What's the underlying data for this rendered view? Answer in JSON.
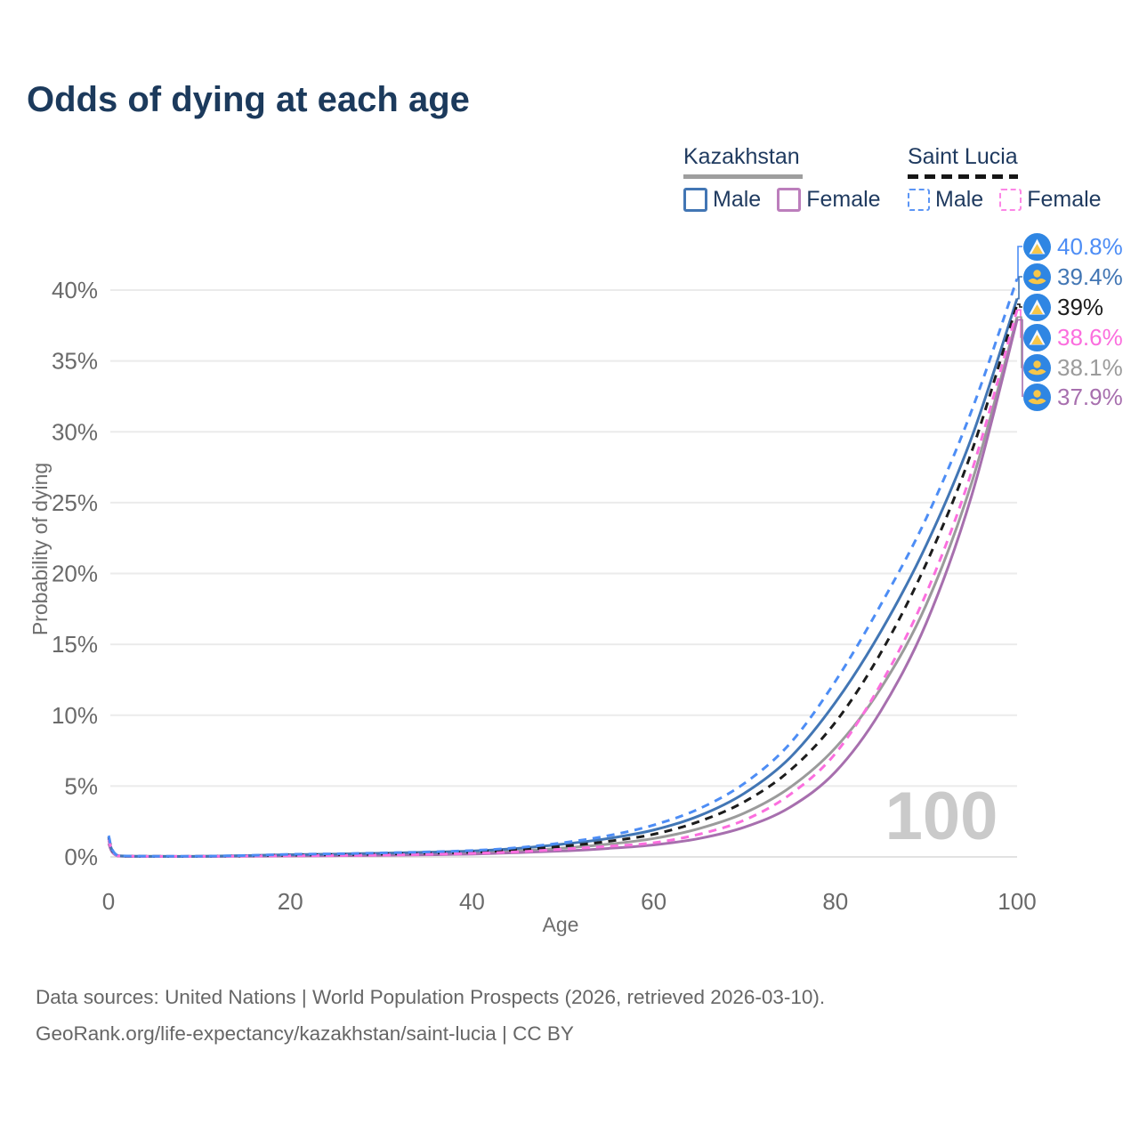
{
  "title": "Odds of dying at each age",
  "legend": {
    "groups": [
      {
        "title": "Kazakhstan",
        "style": "solid",
        "items": [
          {
            "label": "Male",
            "color": "#4276b4"
          },
          {
            "label": "Female",
            "color": "#bc7ebc"
          }
        ]
      },
      {
        "title": "Saint Lucia",
        "style": "dashed",
        "items": [
          {
            "label": "Male",
            "color": "#5b95f5"
          },
          {
            "label": "Female",
            "color": "#fc86e6"
          }
        ]
      }
    ]
  },
  "axes": {
    "x_title": "Age",
    "y_title": "Probability of dying"
  },
  "watermark": "100",
  "footer": {
    "line1": "Data sources: United Nations | World Population Prospects (2026, retrieved 2026-03-10).",
    "line2": "GeoRank.org/life-expectancy/kazakhstan/saint-lucia | CC BY"
  },
  "chart_data": {
    "type": "line",
    "title": "Odds of dying at each age",
    "xlabel": "Age",
    "ylabel": "Probability of dying",
    "xlim": [
      0,
      100
    ],
    "ylim_percent": [
      0,
      40
    ],
    "grid": "horizontal",
    "x_tick_values": [
      0,
      20,
      40,
      60,
      80,
      100
    ],
    "x_tick_labels": [
      "0",
      "20",
      "40",
      "60",
      "80",
      "100"
    ],
    "y_tick_values": [
      0,
      5,
      10,
      15,
      20,
      25,
      30,
      35,
      40
    ],
    "y_tick_labels": [
      "0%",
      "5%",
      "10%",
      "15%",
      "20%",
      "25%",
      "30%",
      "35%",
      "40%"
    ],
    "ages": [
      0,
      1,
      5,
      10,
      15,
      20,
      25,
      30,
      35,
      40,
      45,
      50,
      55,
      60,
      65,
      70,
      75,
      80,
      85,
      90,
      95,
      100
    ],
    "series": [
      {
        "key": "kz_total",
        "name": "Kazakhstan",
        "country": "Kazakhstan",
        "sex": "Both",
        "dash": "solid",
        "color": "#9b9b9b",
        "values_percent": [
          1.15,
          0.08,
          0.04,
          0.04,
          0.07,
          0.1,
          0.13,
          0.17,
          0.22,
          0.29,
          0.42,
          0.62,
          0.9,
          1.3,
          2.0,
          3.1,
          4.9,
          7.7,
          11.9,
          17.8,
          26.4,
          38.1
        ]
      },
      {
        "key": "kz_female",
        "name": "Kazakhstan Female",
        "country": "Kazakhstan",
        "sex": "Female",
        "dash": "solid",
        "color": "#a76fae",
        "values_percent": [
          0.95,
          0.07,
          0.03,
          0.03,
          0.05,
          0.07,
          0.09,
          0.11,
          0.15,
          0.2,
          0.3,
          0.42,
          0.6,
          0.85,
          1.3,
          2.1,
          3.5,
          6.0,
          10.3,
          16.5,
          25.5,
          37.9
        ]
      },
      {
        "key": "kz_male",
        "name": "Kazakhstan Male",
        "country": "Kazakhstan",
        "sex": "Male",
        "dash": "solid",
        "color": "#4276b4",
        "values_percent": [
          1.3,
          0.09,
          0.04,
          0.04,
          0.09,
          0.16,
          0.2,
          0.26,
          0.33,
          0.42,
          0.6,
          0.9,
          1.3,
          1.9,
          2.9,
          4.5,
          7.0,
          10.9,
          15.9,
          22.0,
          29.6,
          39.4
        ]
      },
      {
        "key": "sl_total",
        "name": "Saint Lucia",
        "country": "Saint Lucia",
        "sex": "Both",
        "dash": "dashed",
        "color": "#1c1c1c",
        "values_percent": [
          1.4,
          0.09,
          0.04,
          0.04,
          0.08,
          0.13,
          0.16,
          0.2,
          0.26,
          0.34,
          0.5,
          0.75,
          1.1,
          1.6,
          2.5,
          3.9,
          6.1,
          9.5,
          14.4,
          20.7,
          28.6,
          39.0
        ]
      },
      {
        "key": "sl_female",
        "name": "Saint Lucia Female",
        "country": "Saint Lucia",
        "sex": "Female",
        "dash": "dashed",
        "color": "#fb6ede",
        "values_percent": [
          1.25,
          0.08,
          0.04,
          0.04,
          0.06,
          0.08,
          0.1,
          0.13,
          0.18,
          0.25,
          0.36,
          0.55,
          0.75,
          1.0,
          1.6,
          2.6,
          4.4,
          7.3,
          12.2,
          18.6,
          27.2,
          38.6
        ]
      },
      {
        "key": "sl_male",
        "name": "Saint Lucia Male",
        "country": "Saint Lucia",
        "sex": "Male",
        "dash": "dashed",
        "color": "#4d8df5",
        "values_percent": [
          1.5,
          0.1,
          0.05,
          0.05,
          0.1,
          0.18,
          0.22,
          0.28,
          0.35,
          0.45,
          0.65,
          1.0,
          1.5,
          2.25,
          3.4,
          5.2,
          8.0,
          12.4,
          17.8,
          23.9,
          31.5,
          40.8
        ]
      }
    ],
    "end_labels": [
      {
        "series_key": "sl_male",
        "value": "40.8%",
        "color": "#4d8df5",
        "flag": "saint-lucia",
        "row_center_y": 277
      },
      {
        "series_key": "kz_male",
        "value": "39.4%",
        "color": "#4276b4",
        "flag": "kazakhstan",
        "row_center_y": 311
      },
      {
        "series_key": "sl_total",
        "value": "39%",
        "color": "#1c1c1c",
        "flag": "saint-lucia",
        "row_center_y": 345
      },
      {
        "series_key": "sl_female",
        "value": "38.6%",
        "color": "#fb6ede",
        "flag": "saint-lucia",
        "row_center_y": 379
      },
      {
        "series_key": "kz_total",
        "value": "38.1%",
        "color": "#9b9b9b",
        "flag": "kazakhstan",
        "row_center_y": 413
      },
      {
        "series_key": "kz_female",
        "value": "37.9%",
        "color": "#a76fae",
        "flag": "kazakhstan",
        "row_center_y": 446
      }
    ],
    "hover_age_indicator": "100"
  }
}
